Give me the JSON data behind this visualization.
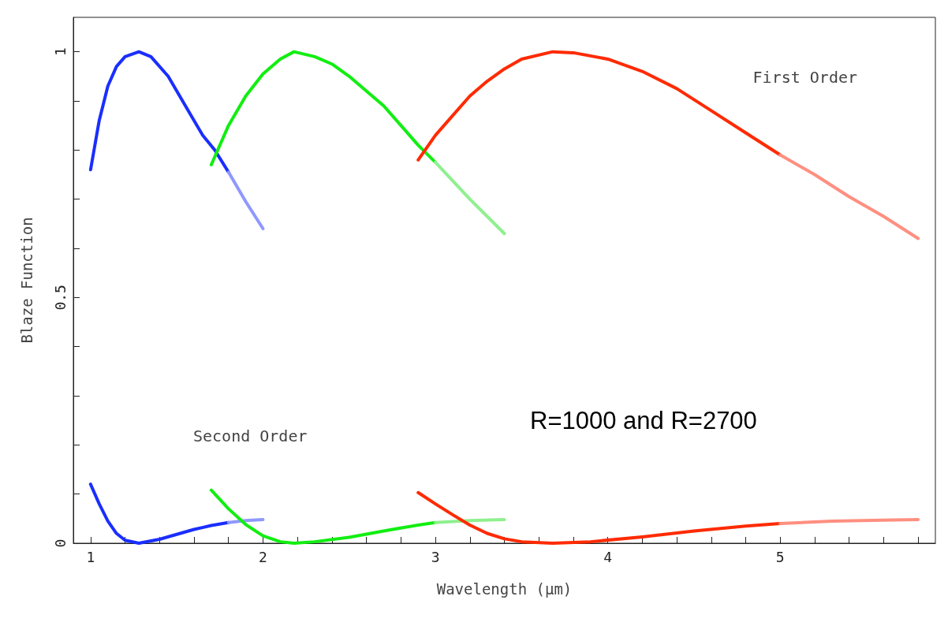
{
  "chart_data": {
    "type": "line",
    "xlabel": "Wavelength (μm)",
    "ylabel": "Blaze Function",
    "xlim": [
      0.9,
      5.9
    ],
    "ylim": [
      0,
      1.07
    ],
    "xticks": [
      1,
      {
        "value": 1.2,
        "label": null
      },
      {
        "value": 1.4,
        "label": null
      },
      {
        "value": 1.6,
        "label": null
      },
      {
        "value": 1.8,
        "label": null
      },
      2,
      {
        "value": 2.2,
        "label": null
      },
      {
        "value": 2.4,
        "label": null
      },
      {
        "value": 2.6,
        "label": null
      },
      {
        "value": 2.8,
        "label": null
      },
      3,
      {
        "value": 3.2,
        "label": null
      },
      {
        "value": 3.4,
        "label": null
      },
      {
        "value": 3.6,
        "label": null
      },
      {
        "value": 3.8,
        "label": null
      },
      4,
      {
        "value": 4.2,
        "label": null
      },
      {
        "value": 4.4,
        "label": null
      },
      {
        "value": 4.6,
        "label": null
      },
      {
        "value": 4.8,
        "label": null
      },
      5,
      {
        "value": 5.2,
        "label": null
      },
      {
        "value": 5.4,
        "label": null
      },
      {
        "value": 5.6,
        "label": null
      },
      {
        "value": 5.8,
        "label": null
      }
    ],
    "yticks": [
      0,
      {
        "value": 0.1,
        "label": null
      },
      {
        "value": 0.2,
        "label": null
      },
      {
        "value": 0.3,
        "label": null
      },
      {
        "value": 0.4,
        "label": null
      },
      0.5,
      {
        "value": 0.6,
        "label": null
      },
      {
        "value": 0.7,
        "label": null
      },
      {
        "value": 0.8,
        "label": null
      },
      {
        "value": 0.9,
        "label": null
      },
      1
    ],
    "grid": false,
    "marker": "none",
    "line_style": "solid",
    "annotations": [
      "First Order",
      "Second Order",
      "R=1000 and R=2700"
    ],
    "series": [
      {
        "color": "#1a2eff",
        "x": [
          1,
          1.05,
          1.1,
          1.15,
          1.2,
          1.28,
          1.35,
          1.45,
          1.55,
          1.65,
          1.72,
          1.8
        ],
        "values": [
          0.76,
          0.86,
          0.93,
          0.97,
          0.99,
          1.0,
          0.99,
          0.95,
          0.89,
          0.83,
          0.8,
          0.755
        ]
      },
      {
        "color": "#8f98ff",
        "x": [
          1.8,
          1.9,
          2.0
        ],
        "values": [
          0.755,
          0.695,
          0.64
        ]
      },
      {
        "color": "#11ee11",
        "x": [
          1.7,
          1.8,
          1.9,
          2.0,
          2.1,
          2.18,
          2.3,
          2.4,
          2.5,
          2.6,
          2.7,
          2.8,
          2.9,
          3.0
        ],
        "values": [
          0.77,
          0.85,
          0.91,
          0.955,
          0.985,
          1.0,
          0.99,
          0.975,
          0.95,
          0.92,
          0.89,
          0.85,
          0.81,
          0.775
        ]
      },
      {
        "color": "#8ff08f",
        "x": [
          3.0,
          3.2,
          3.4
        ],
        "values": [
          0.775,
          0.7,
          0.63
        ]
      },
      {
        "color": "#ff2a00",
        "x": [
          2.9,
          3.0,
          3.1,
          3.2,
          3.3,
          3.4,
          3.5,
          3.68,
          3.8,
          4.0,
          4.2,
          4.4,
          4.6,
          4.8,
          5.0
        ],
        "values": [
          0.78,
          0.83,
          0.87,
          0.91,
          0.94,
          0.965,
          0.985,
          1.0,
          0.998,
          0.985,
          0.96,
          0.925,
          0.88,
          0.835,
          0.79
        ]
      },
      {
        "color": "#ff8f80",
        "x": [
          5.0,
          5.2,
          5.4,
          5.6,
          5.8
        ],
        "values": [
          0.79,
          0.75,
          0.705,
          0.665,
          0.62
        ]
      },
      {
        "color": "#1a2eff",
        "x": [
          1,
          1.05,
          1.1,
          1.15,
          1.2,
          1.28,
          1.4,
          1.5,
          1.6,
          1.7,
          1.8
        ],
        "values": [
          0.12,
          0.08,
          0.045,
          0.02,
          0.006,
          0,
          0.008,
          0.018,
          0.028,
          0.036,
          0.042
        ]
      },
      {
        "color": "#8f98ff",
        "x": [
          1.8,
          1.9,
          2.0
        ],
        "values": [
          0.042,
          0.046,
          0.048
        ]
      },
      {
        "color": "#11ee11",
        "x": [
          1.7,
          1.8,
          1.9,
          2.0,
          2.1,
          2.18,
          2.3,
          2.5,
          2.7,
          2.9,
          3.0
        ],
        "values": [
          0.108,
          0.07,
          0.038,
          0.015,
          0.003,
          0,
          0.003,
          0.012,
          0.025,
          0.037,
          0.042
        ]
      },
      {
        "color": "#8ff08f",
        "x": [
          3.0,
          3.2,
          3.4
        ],
        "values": [
          0.042,
          0.046,
          0.048
        ]
      },
      {
        "color": "#ff2a00",
        "x": [
          2.9,
          3.0,
          3.1,
          3.2,
          3.3,
          3.4,
          3.5,
          3.68,
          3.9,
          4.2,
          4.5,
          4.8,
          5.0
        ],
        "values": [
          0.103,
          0.08,
          0.058,
          0.037,
          0.02,
          0.009,
          0.003,
          0,
          0.003,
          0.013,
          0.025,
          0.035,
          0.04
        ]
      },
      {
        "color": "#ff8f80",
        "x": [
          5.0,
          5.3,
          5.6,
          5.8
        ],
        "values": [
          0.04,
          0.045,
          0.047,
          0.048
        ]
      }
    ]
  }
}
